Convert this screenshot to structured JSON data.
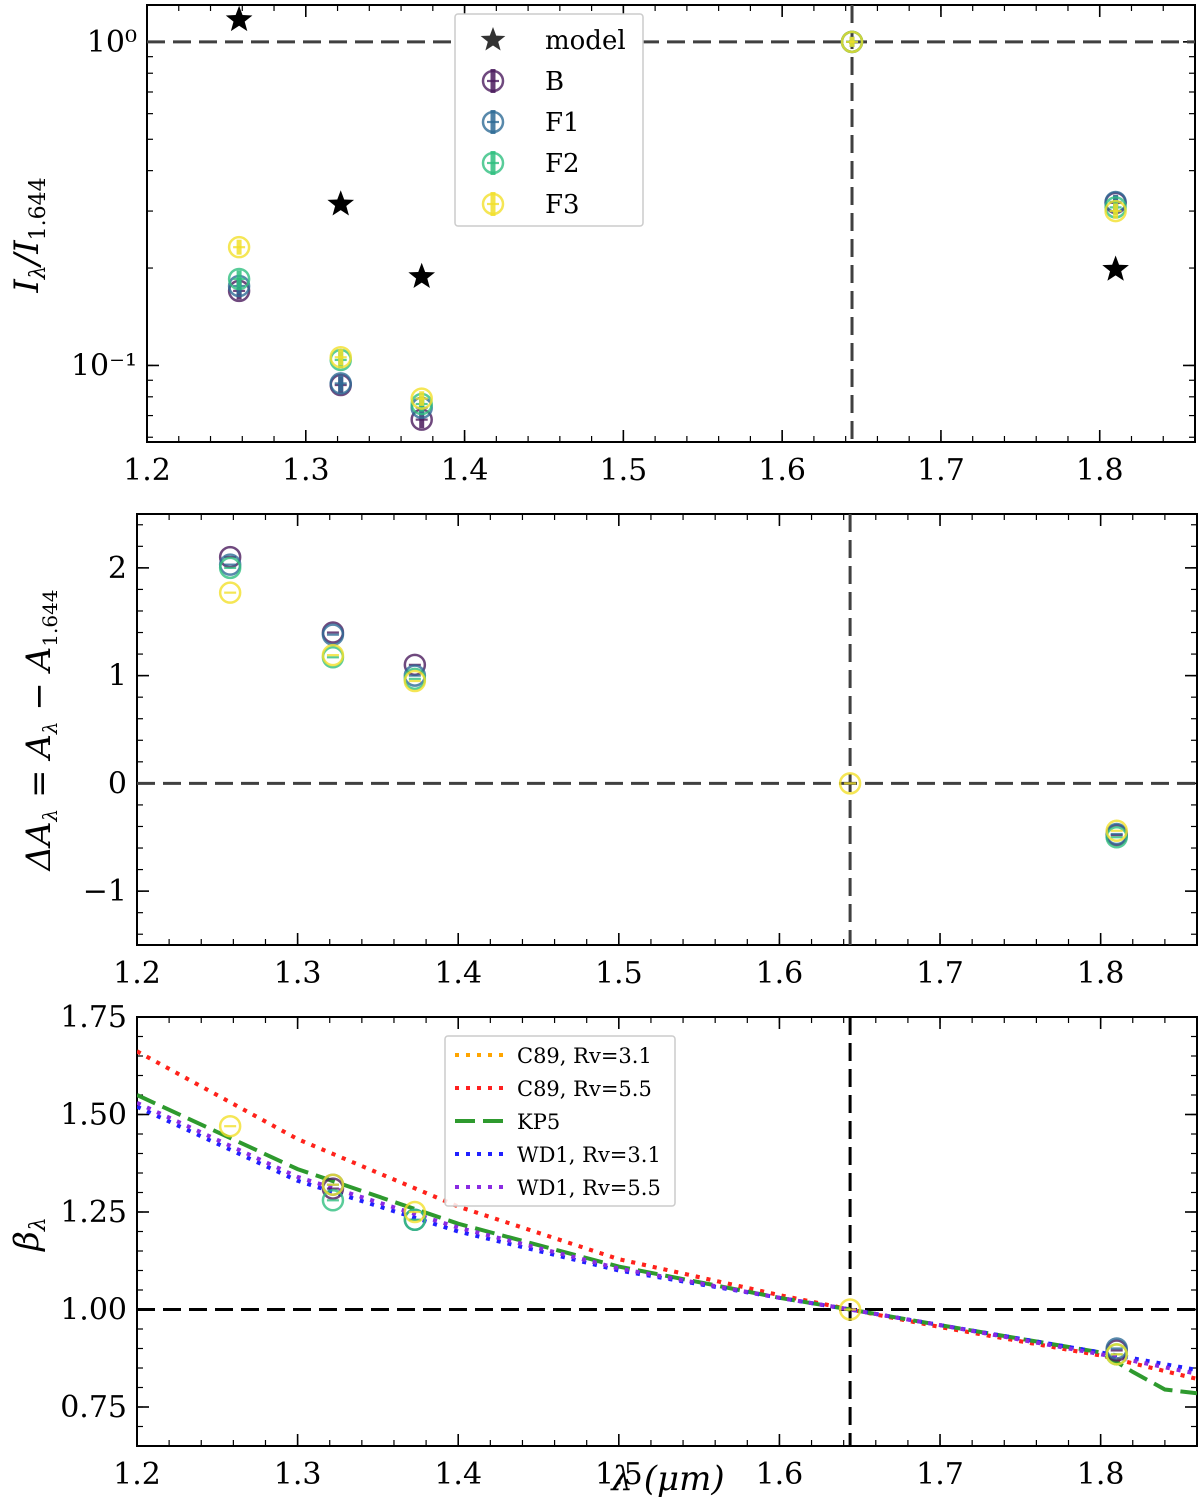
{
  "colors": {
    "B": "#4b1b5e",
    "F1": "#2e6b96",
    "F2": "#2fbf7f",
    "F3": "#f2e02a",
    "model": "#000000",
    "ref": "#404040",
    "C89_31": "#ffa500",
    "C89_55": "#ff2020",
    "KP5": "#2e9a2e",
    "WD1_31": "#2020ff",
    "WD1_55": "#8a2be2"
  },
  "chart_data": [
    {
      "type": "scatter",
      "ylabel": "I_λ/I_1.644",
      "yscale": "log",
      "xlim": [
        1.2,
        1.86
      ],
      "ylim": [
        0.058,
        1.3
      ],
      "xticks": [
        "1.2",
        "1.3",
        "1.4",
        "1.5",
        "1.6",
        "1.7",
        "1.8"
      ],
      "yticks": [
        "10⁰",
        "10⁻¹"
      ],
      "legend": {
        "placement": "upper-center",
        "entries": [
          "model",
          "B",
          "F1",
          "F2",
          "F3"
        ]
      },
      "reference_lines": {
        "x": 1.644,
        "y": 1.0
      },
      "model_points": [
        {
          "x": 1.258,
          "y": 1.17
        },
        {
          "x": 1.322,
          "y": 0.315
        },
        {
          "x": 1.373,
          "y": 0.188
        },
        {
          "x": 1.81,
          "y": 0.198
        }
      ],
      "series": [
        {
          "name": "B",
          "points": [
            [
              1.258,
              0.17,
              0.01
            ],
            [
              1.322,
              0.087,
              0.005
            ],
            [
              1.373,
              0.068,
              0.004
            ],
            [
              1.644,
              1.0,
              0.03
            ],
            [
              1.81,
              0.318,
              0.016
            ]
          ]
        },
        {
          "name": "F1",
          "points": [
            [
              1.258,
              0.176,
              0.01
            ],
            [
              1.322,
              0.088,
              0.005
            ],
            [
              1.373,
              0.074,
              0.004
            ],
            [
              1.644,
              1.0,
              0.03
            ],
            [
              1.81,
              0.32,
              0.016
            ]
          ]
        },
        {
          "name": "F2",
          "points": [
            [
              1.258,
              0.185,
              0.011
            ],
            [
              1.322,
              0.104,
              0.006
            ],
            [
              1.373,
              0.076,
              0.004
            ],
            [
              1.644,
              1.0,
              0.03
            ],
            [
              1.81,
              0.308,
              0.016
            ]
          ]
        },
        {
          "name": "F3",
          "points": [
            [
              1.258,
              0.232,
              0.012
            ],
            [
              1.322,
              0.106,
              0.006
            ],
            [
              1.373,
              0.079,
              0.004
            ],
            [
              1.644,
              1.0,
              0.03
            ],
            [
              1.81,
              0.3,
              0.016
            ]
          ]
        }
      ]
    },
    {
      "type": "scatter",
      "ylabel": "ΔA_λ = A_λ − A_1.644",
      "xlim": [
        1.2,
        1.86
      ],
      "ylim": [
        -1.5,
        2.5
      ],
      "xticks": [
        "1.2",
        "1.3",
        "1.4",
        "1.5",
        "1.6",
        "1.7",
        "1.8"
      ],
      "yticks": [
        "−1",
        "0",
        "1",
        "2"
      ],
      "reference_lines": {
        "x": 1.644,
        "y": 0
      },
      "series": [
        {
          "name": "B",
          "points": [
            [
              1.258,
              2.1
            ],
            [
              1.322,
              1.4
            ],
            [
              1.373,
              1.1
            ],
            [
              1.81,
              -0.48
            ]
          ]
        },
        {
          "name": "F1",
          "points": [
            [
              1.258,
              2.03
            ],
            [
              1.322,
              1.38
            ],
            [
              1.373,
              1.0
            ],
            [
              1.81,
              -0.47
            ]
          ]
        },
        {
          "name": "F2",
          "points": [
            [
              1.258,
              2.0
            ],
            [
              1.322,
              1.17
            ],
            [
              1.373,
              0.97
            ],
            [
              1.81,
              -0.5
            ]
          ]
        },
        {
          "name": "F3",
          "points": [
            [
              1.258,
              1.77
            ],
            [
              1.322,
              1.19
            ],
            [
              1.373,
              0.95
            ],
            [
              1.644,
              0.0
            ],
            [
              1.81,
              -0.44
            ]
          ]
        }
      ]
    },
    {
      "type": "line",
      "xlabel": "λ (μm)",
      "ylabel": "β_λ",
      "xlim": [
        1.2,
        1.86
      ],
      "ylim": [
        0.65,
        1.75
      ],
      "xticks": [
        "1.2",
        "1.3",
        "1.4",
        "1.5",
        "1.6",
        "1.7",
        "1.8"
      ],
      "yticks": [
        "0.75",
        "1.00",
        "1.25",
        "1.50",
        "1.75"
      ],
      "legend": {
        "placement": "upper-center",
        "entries": [
          "C89, Rv=3.1",
          "C89, Rv=5.5",
          "KP5",
          "WD1, Rv=3.1",
          "WD1, Rv=5.5"
        ]
      },
      "reference_lines": {
        "x": 1.644,
        "y": 1.0
      },
      "curves": [
        {
          "name": "C89, Rv=3.1",
          "style": "dotted",
          "x": [
            1.2,
            1.3,
            1.4,
            1.5,
            1.6,
            1.644,
            1.7,
            1.8,
            1.86
          ],
          "y": [
            1.662,
            1.437,
            1.264,
            1.129,
            1.037,
            1.0,
            0.955,
            0.882,
            0.822
          ]
        },
        {
          "name": "C89, Rv=5.5",
          "style": "dotted",
          "x": [
            1.2,
            1.3,
            1.4,
            1.5,
            1.6,
            1.644,
            1.7,
            1.8,
            1.86
          ],
          "y": [
            1.662,
            1.437,
            1.264,
            1.129,
            1.037,
            1.0,
            0.955,
            0.882,
            0.822
          ]
        },
        {
          "name": "KP5",
          "style": "dashed",
          "x": [
            1.2,
            1.3,
            1.4,
            1.5,
            1.6,
            1.644,
            1.7,
            1.8,
            1.82,
            1.84,
            1.86
          ],
          "y": [
            1.55,
            1.36,
            1.22,
            1.11,
            1.03,
            1.0,
            0.96,
            0.89,
            0.84,
            0.795,
            0.785
          ]
        },
        {
          "name": "WD1, Rv=3.1",
          "style": "dotted",
          "x": [
            1.2,
            1.3,
            1.4,
            1.5,
            1.6,
            1.644,
            1.7,
            1.8,
            1.86
          ],
          "y": [
            1.52,
            1.33,
            1.2,
            1.1,
            1.03,
            1.0,
            0.96,
            0.89,
            0.845
          ]
        },
        {
          "name": "WD1, Rv=5.5",
          "style": "dotted",
          "x": [
            1.2,
            1.3,
            1.4,
            1.5,
            1.6,
            1.644,
            1.7,
            1.8,
            1.86
          ],
          "y": [
            1.53,
            1.34,
            1.21,
            1.105,
            1.03,
            1.0,
            0.96,
            0.885,
            0.835
          ]
        }
      ],
      "series": [
        {
          "name": "B",
          "points": [
            [
              1.322,
              1.31
            ],
            [
              1.81,
              0.895
            ]
          ]
        },
        {
          "name": "F1",
          "points": [
            [
              1.322,
              1.32
            ],
            [
              1.373,
              1.23
            ],
            [
              1.81,
              0.9
            ]
          ]
        },
        {
          "name": "F2",
          "points": [
            [
              1.322,
              1.28
            ],
            [
              1.373,
              1.23
            ],
            [
              1.81,
              0.885
            ]
          ]
        },
        {
          "name": "F3",
          "points": [
            [
              1.258,
              1.47
            ],
            [
              1.322,
              1.32
            ],
            [
              1.373,
              1.25
            ],
            [
              1.644,
              1.0
            ],
            [
              1.81,
              0.885
            ]
          ]
        }
      ]
    }
  ]
}
